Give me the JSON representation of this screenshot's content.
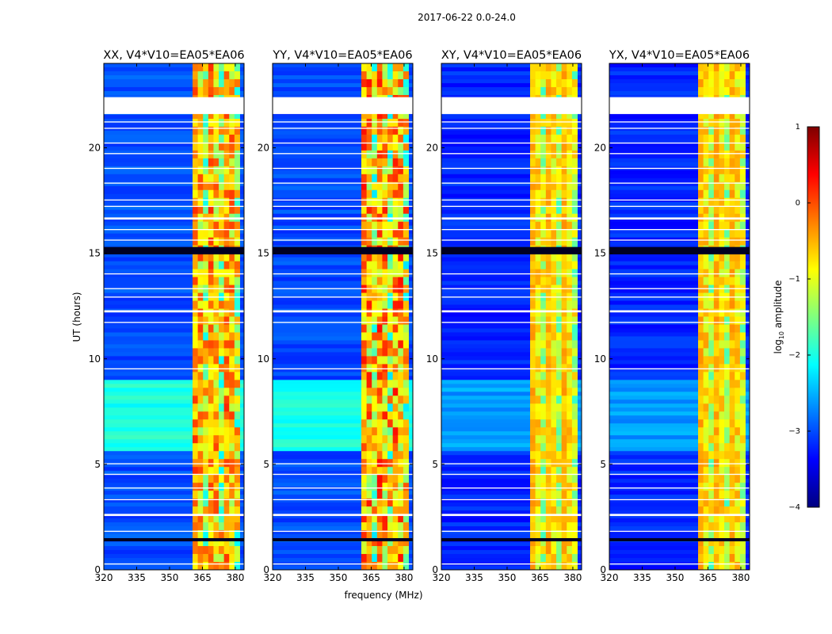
{
  "figure": {
    "suptitle": "2017-06-22 0.0-24.0",
    "xlabel": "frequency (MHz)",
    "ylabel": "UT (hours)"
  },
  "colorbar": {
    "label_main": "log",
    "label_sub": "10",
    "label_rest": " amplitude",
    "min": -4,
    "max": 1,
    "ticks": [
      -4,
      -3,
      -2,
      -1,
      0,
      1
    ],
    "tick_labels": [
      "−4",
      "−3",
      "−2",
      "−1",
      "0",
      "1"
    ],
    "colormap": "jet",
    "colormap_stops": [
      "#00007f",
      "#0000ff",
      "#007fff",
      "#00ffff",
      "#7fff7f",
      "#ffff00",
      "#ff7f00",
      "#ff0000",
      "#7f0000"
    ]
  },
  "chart_data": [
    {
      "type": "heatmap",
      "title": "XX, V4*V10=EA05*EA06",
      "x": {
        "range": [
          320,
          384
        ],
        "ticks": [
          320,
          335,
          350,
          365,
          380
        ],
        "tick_labels": [
          "320",
          "335",
          "350",
          "365",
          "380"
        ]
      },
      "y": {
        "range": [
          0,
          24
        ],
        "ticks": [
          0,
          5,
          10,
          15,
          20
        ],
        "tick_labels": [
          "0",
          "5",
          "10",
          "15",
          "20"
        ]
      },
      "background_log_amplitude": -3.0,
      "elevated_background": {
        "ut_range": [
          5.7,
          9.0
        ],
        "log_amplitude": -2.0
      },
      "rfi_band_mhz": [
        360.5,
        382
      ],
      "rfi_peak_log_amplitude": 0.5
    },
    {
      "type": "heatmap",
      "title": "YY, V4*V10=EA05*EA06",
      "x": {
        "range": [
          320,
          384
        ],
        "ticks": [
          320,
          335,
          350,
          365,
          380
        ],
        "tick_labels": [
          "320",
          "335",
          "350",
          "365",
          "380"
        ]
      },
      "y": {
        "range": [
          0,
          24
        ],
        "ticks": [
          0,
          5,
          10,
          15,
          20
        ],
        "tick_labels": [
          "0",
          "5",
          "10",
          "15",
          "20"
        ]
      },
      "background_log_amplitude": -3.0,
      "elevated_background": {
        "ut_range": [
          5.7,
          9.0
        ],
        "log_amplitude": -2.0
      },
      "rfi_band_mhz": [
        360.5,
        382
      ],
      "rfi_peak_log_amplitude": 0.8
    },
    {
      "type": "heatmap",
      "title": "XY, V4*V10=EA05*EA06",
      "x": {
        "range": [
          320,
          384
        ],
        "ticks": [
          320,
          335,
          350,
          365,
          380
        ],
        "tick_labels": [
          "320",
          "335",
          "350",
          "365",
          "380"
        ]
      },
      "y": {
        "range": [
          0,
          24
        ],
        "ticks": [
          0,
          5,
          10,
          15,
          20
        ],
        "tick_labels": [
          "0",
          "5",
          "10",
          "15",
          "20"
        ]
      },
      "background_log_amplitude": -3.2,
      "elevated_background": {
        "ut_range": [
          5.7,
          9.0
        ],
        "log_amplitude": -2.6
      },
      "rfi_band_mhz": [
        360.5,
        382
      ],
      "rfi_peak_log_amplitude": -0.2
    },
    {
      "type": "heatmap",
      "title": "YX, V4*V10=EA05*EA06",
      "x": {
        "range": [
          320,
          384
        ],
        "ticks": [
          320,
          335,
          350,
          365,
          380
        ],
        "tick_labels": [
          "320",
          "335",
          "350",
          "365",
          "380"
        ]
      },
      "y": {
        "range": [
          0,
          24
        ],
        "ticks": [
          0,
          5,
          10,
          15,
          20
        ],
        "tick_labels": [
          "0",
          "5",
          "10",
          "15",
          "20"
        ]
      },
      "background_log_amplitude": -3.2,
      "elevated_background": {
        "ut_range": [
          5.7,
          9.0
        ],
        "log_amplitude": -2.6
      },
      "rfi_band_mhz": [
        360.5,
        382
      ],
      "rfi_peak_log_amplitude": -0.2
    }
  ],
  "flagged_ut_ranges": [
    [
      21.6,
      22.4
    ],
    [
      0.25,
      0.3
    ],
    [
      1.8,
      1.85
    ],
    [
      2.55,
      2.65
    ],
    [
      3.3,
      3.35
    ],
    [
      3.85,
      3.9
    ],
    [
      4.5,
      4.55
    ],
    [
      5.0,
      5.05
    ],
    [
      9.5,
      9.55
    ],
    [
      11.7,
      11.75
    ],
    [
      12.2,
      12.3
    ],
    [
      12.9,
      12.95
    ],
    [
      13.3,
      13.35
    ],
    [
      14.0,
      14.05
    ],
    [
      15.6,
      15.65
    ],
    [
      16.1,
      16.15
    ],
    [
      16.6,
      16.7
    ],
    [
      17.2,
      17.25
    ],
    [
      17.5,
      17.55
    ],
    [
      18.3,
      18.35
    ],
    [
      19.0,
      19.05
    ],
    [
      19.7,
      19.75
    ],
    [
      20.2,
      20.25
    ],
    [
      20.9,
      20.95
    ],
    [
      21.2,
      21.25
    ]
  ],
  "dark_ut_bands": [
    [
      14.95,
      15.3
    ],
    [
      1.35,
      1.5
    ]
  ]
}
